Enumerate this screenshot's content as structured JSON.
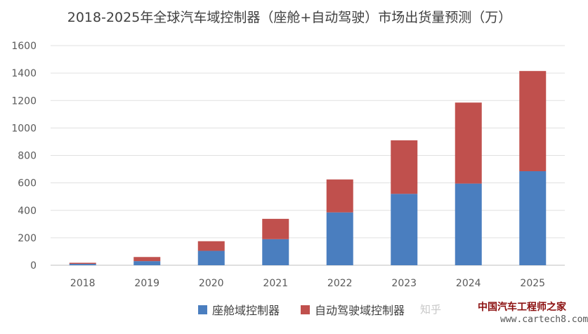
{
  "chart_data": {
    "type": "bar",
    "stacked": true,
    "title": "2018-2025年全球汽车域控制器（座舱+自动驾驶）市场出货量预测（万）",
    "categories": [
      "2018",
      "2019",
      "2020",
      "2021",
      "2022",
      "2023",
      "2024",
      "2025"
    ],
    "series": [
      {
        "name": "座舱域控制器",
        "color": "#4a7ebf",
        "values": [
          10,
          30,
          105,
          190,
          385,
          520,
          595,
          685
        ]
      },
      {
        "name": "自动驾驶域控制器",
        "color": "#c0504d",
        "values": [
          8,
          30,
          70,
          148,
          240,
          390,
          590,
          730
        ]
      }
    ],
    "ylim": [
      0,
      1600
    ],
    "yticks": [
      0,
      200,
      400,
      600,
      800,
      1000,
      1200,
      1400,
      1600
    ],
    "grid": true,
    "legend_position": "bottom"
  },
  "watermarks": {
    "zhihu": "知乎",
    "site_name": "中国汽车工程师之家",
    "site_url": "www.cartech8.com"
  }
}
